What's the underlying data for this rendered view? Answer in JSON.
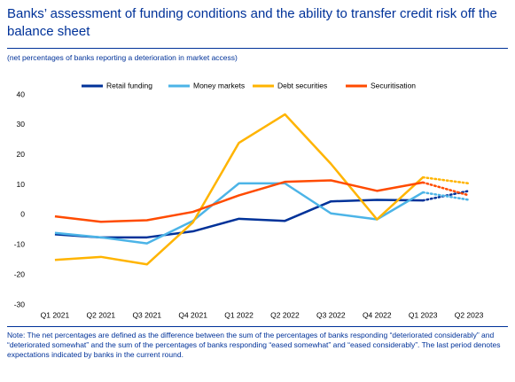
{
  "chart_data": {
    "type": "line",
    "title": "Banks’ assessment of funding conditions and the ability to transfer credit risk off the balance sheet",
    "subtitle": "(net percentages of banks reporting a deterioration in market access)",
    "categories": [
      "Q1 2021",
      "Q2 2021",
      "Q3 2021",
      "Q4 2021",
      "Q1 2022",
      "Q2 2022",
      "Q3 2022",
      "Q4 2022",
      "Q1 2023",
      "Q2 2023"
    ],
    "series": [
      {
        "name": "Retail funding",
        "color": "#003299",
        "values": [
          -6.5,
          -7.5,
          -7.5,
          -5.5,
          -1.3,
          -2,
          4.5,
          5,
          4.8,
          8
        ]
      },
      {
        "name": "Money markets",
        "color": "#4cb4e7",
        "values": [
          -6,
          -7.5,
          -9.5,
          -2,
          10.5,
          10.5,
          0.5,
          -1.5,
          7.5,
          5
        ]
      },
      {
        "name": "Debt securities",
        "color": "#ffb400",
        "values": [
          -15,
          -14,
          -16.5,
          -2.5,
          24,
          33.5,
          17,
          -1.5,
          12.5,
          10.5
        ]
      },
      {
        "name": "Securitisation",
        "color": "#ff4b00",
        "values": [
          -0.5,
          -2.3,
          -1.8,
          1,
          6.5,
          11,
          11.5,
          8,
          10.8,
          6.5
        ]
      }
    ],
    "ylim": [
      -30,
      40
    ],
    "yticks": [
      -30,
      -20,
      -10,
      0,
      10,
      20,
      30,
      40
    ],
    "grid": false,
    "note": "Note: The net percentages are defined as the difference between the sum of the percentages of banks responding “deteriorated considerably” and “deteriorated somewhat” and the sum of the percentages of banks responding “eased somewhat” and “eased considerably”. The last period denotes expectations indicated by banks in the current round."
  }
}
